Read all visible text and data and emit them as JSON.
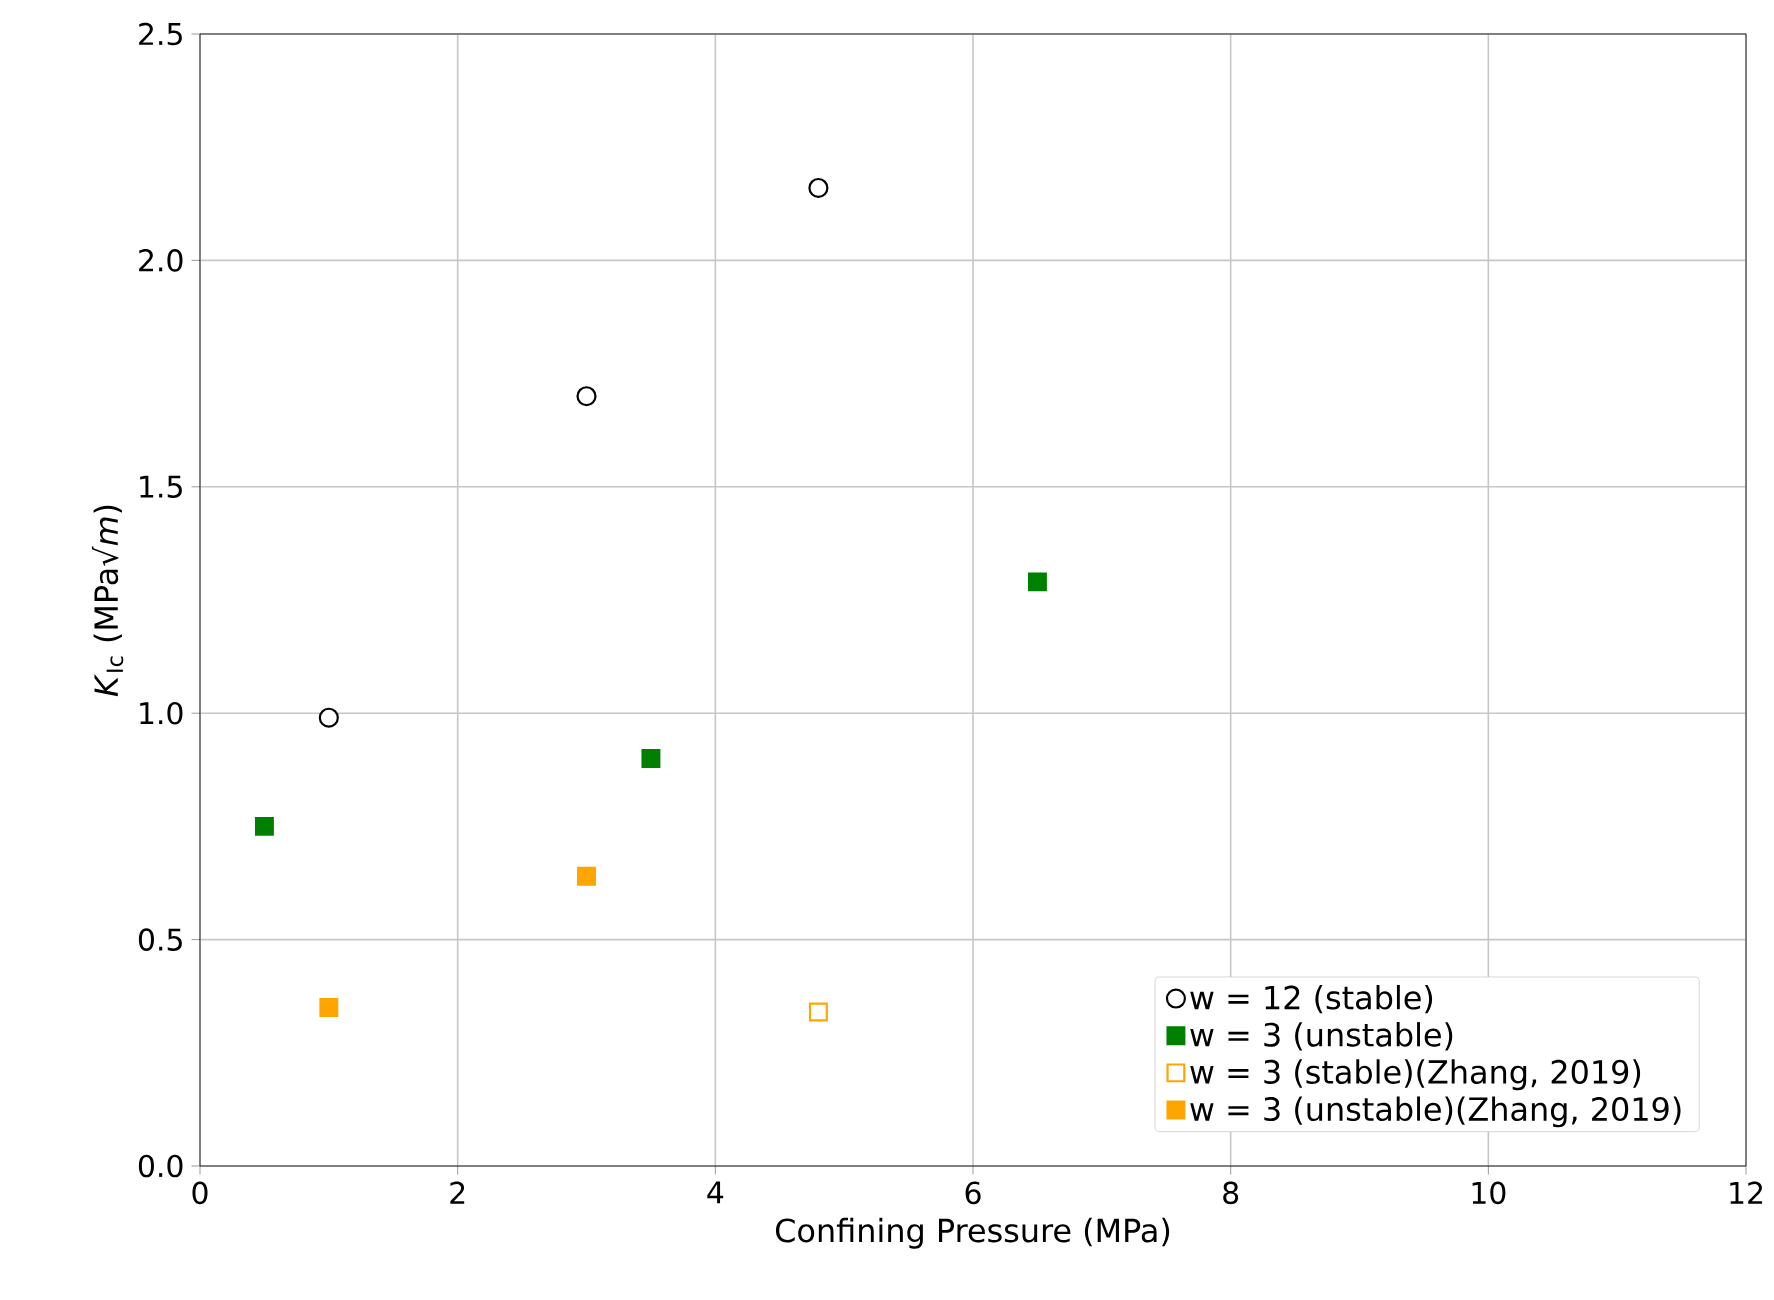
{
  "chart_data": {
    "type": "scatter",
    "xlabel": "Confining Pressure (MPa)",
    "ylabel": "*K*$_{Ic}$ (MPa√*m*)",
    "xlim": [
      0,
      12
    ],
    "xticks": [
      0,
      2,
      4,
      6,
      8,
      10,
      12
    ],
    "ylim": [
      0,
      2.5
    ],
    "yticks": [
      {
        "value": 0,
        "label": "0.0"
      },
      {
        "value": 0.5,
        "label": "0.5"
      },
      {
        "value": 1,
        "label": "1.0"
      },
      {
        "value": 1.5,
        "label": "1.5"
      },
      {
        "value": 2,
        "label": "2.0"
      },
      {
        "value": 2.5,
        "label": "2.5"
      }
    ],
    "grid": true,
    "legend": "bottom right",
    "series": [
      {
        "name": "w = 12 (stable)",
        "color": "#000000",
        "marker": "circle-open",
        "x": [
          1,
          3,
          4.8
        ],
        "values": [
          0.99,
          1.7,
          2.16
        ]
      },
      {
        "name": "w = 3 (unstable)",
        "color": "#008000",
        "marker": "square",
        "x": [
          0.5,
          3.5,
          6.5
        ],
        "values": [
          0.75,
          0.9,
          1.29
        ]
      },
      {
        "name": "w = 3 (stable)(Zhang, 2019)",
        "color": "#ffa500",
        "marker": "square-open",
        "x": [
          4.8
        ],
        "values": [
          0.34
        ]
      },
      {
        "name": "w = 3 (unstable)(Zhang, 2019)",
        "color": "#ffa500",
        "marker": "square",
        "x": [
          1,
          3
        ],
        "values": [
          0.35,
          0.64
        ]
      }
    ]
  }
}
